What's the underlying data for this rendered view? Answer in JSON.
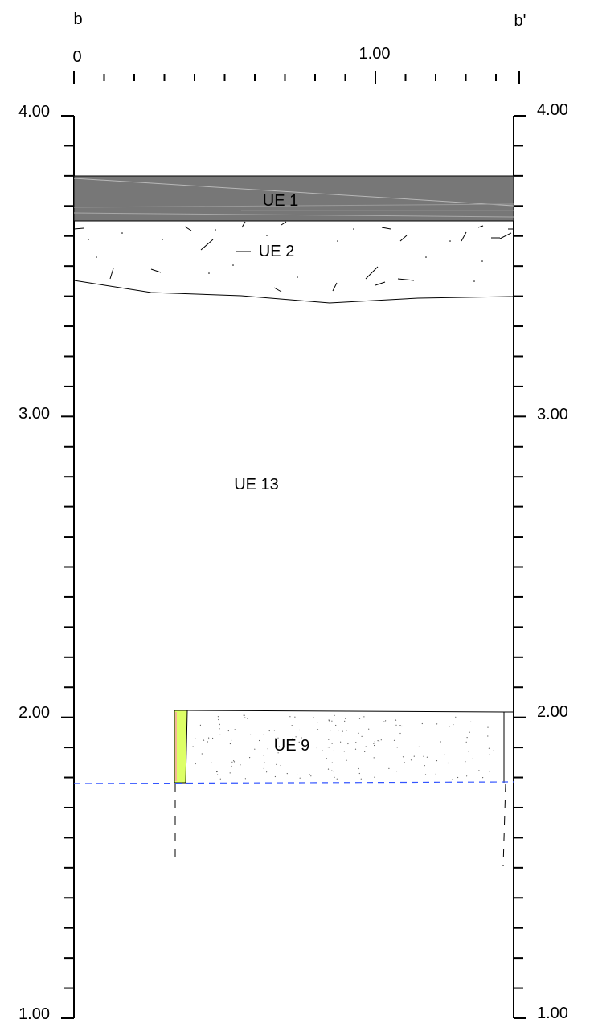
{
  "section": {
    "left_marker": "b",
    "right_marker": "b'"
  },
  "horizontal_scale": {
    "labels": [
      "0",
      "1.00"
    ]
  },
  "elevation_scale": {
    "labels": [
      "4.00",
      "3.00",
      "2.00",
      "1.00"
    ]
  },
  "layers": {
    "ue1": "UE 1",
    "ue2": "UE 2",
    "ue13": "UE 13",
    "ue9": "UE 9"
  },
  "colors": {
    "ue1_fill": "#777777",
    "wall_fill": "#ddff66",
    "wall_edge": "#ff99aa",
    "water_line": "#3355ff",
    "line": "#000000"
  }
}
